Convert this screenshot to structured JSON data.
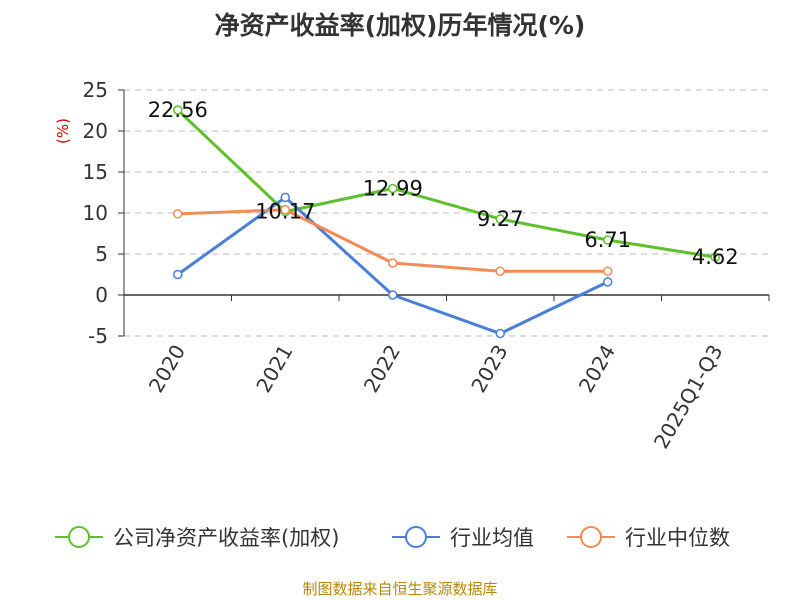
{
  "chart_data": {
    "type": "line",
    "title": "净资产收益率(加权)历年情况(%)",
    "ylabel": "(%)",
    "ylabel_color": "#cc0000",
    "categories": [
      "2020",
      "2021",
      "2022",
      "2023",
      "2024",
      "2025Q1-Q3"
    ],
    "ylim": [
      -5,
      25
    ],
    "yticks": [
      25,
      20,
      15,
      10,
      5,
      0,
      -5
    ],
    "ytick_labels": [
      "25",
      "20",
      "15",
      "10",
      "5",
      "0",
      "-5"
    ],
    "grid": "dashed-horizontal",
    "legend_position": "bottom",
    "series": [
      {
        "name": "公司净资产收益率(加权)",
        "color": "#5cc12b",
        "values": [
          22.56,
          10.17,
          12.99,
          9.27,
          6.71,
          4.62
        ],
        "labels": [
          "22.56",
          "10.17",
          "12.99",
          "9.27",
          "6.71",
          "4.62"
        ]
      },
      {
        "name": "行业均值",
        "color": "#4a7fd9",
        "values": [
          2.5,
          11.9,
          0.0,
          -4.7,
          1.6,
          null
        ]
      },
      {
        "name": "行业中位数",
        "color": "#f48b57",
        "values": [
          9.9,
          10.4,
          3.9,
          2.9,
          2.9,
          null
        ]
      }
    ]
  },
  "footer": {
    "source": "制图数据来自恒生聚源数据库"
  }
}
